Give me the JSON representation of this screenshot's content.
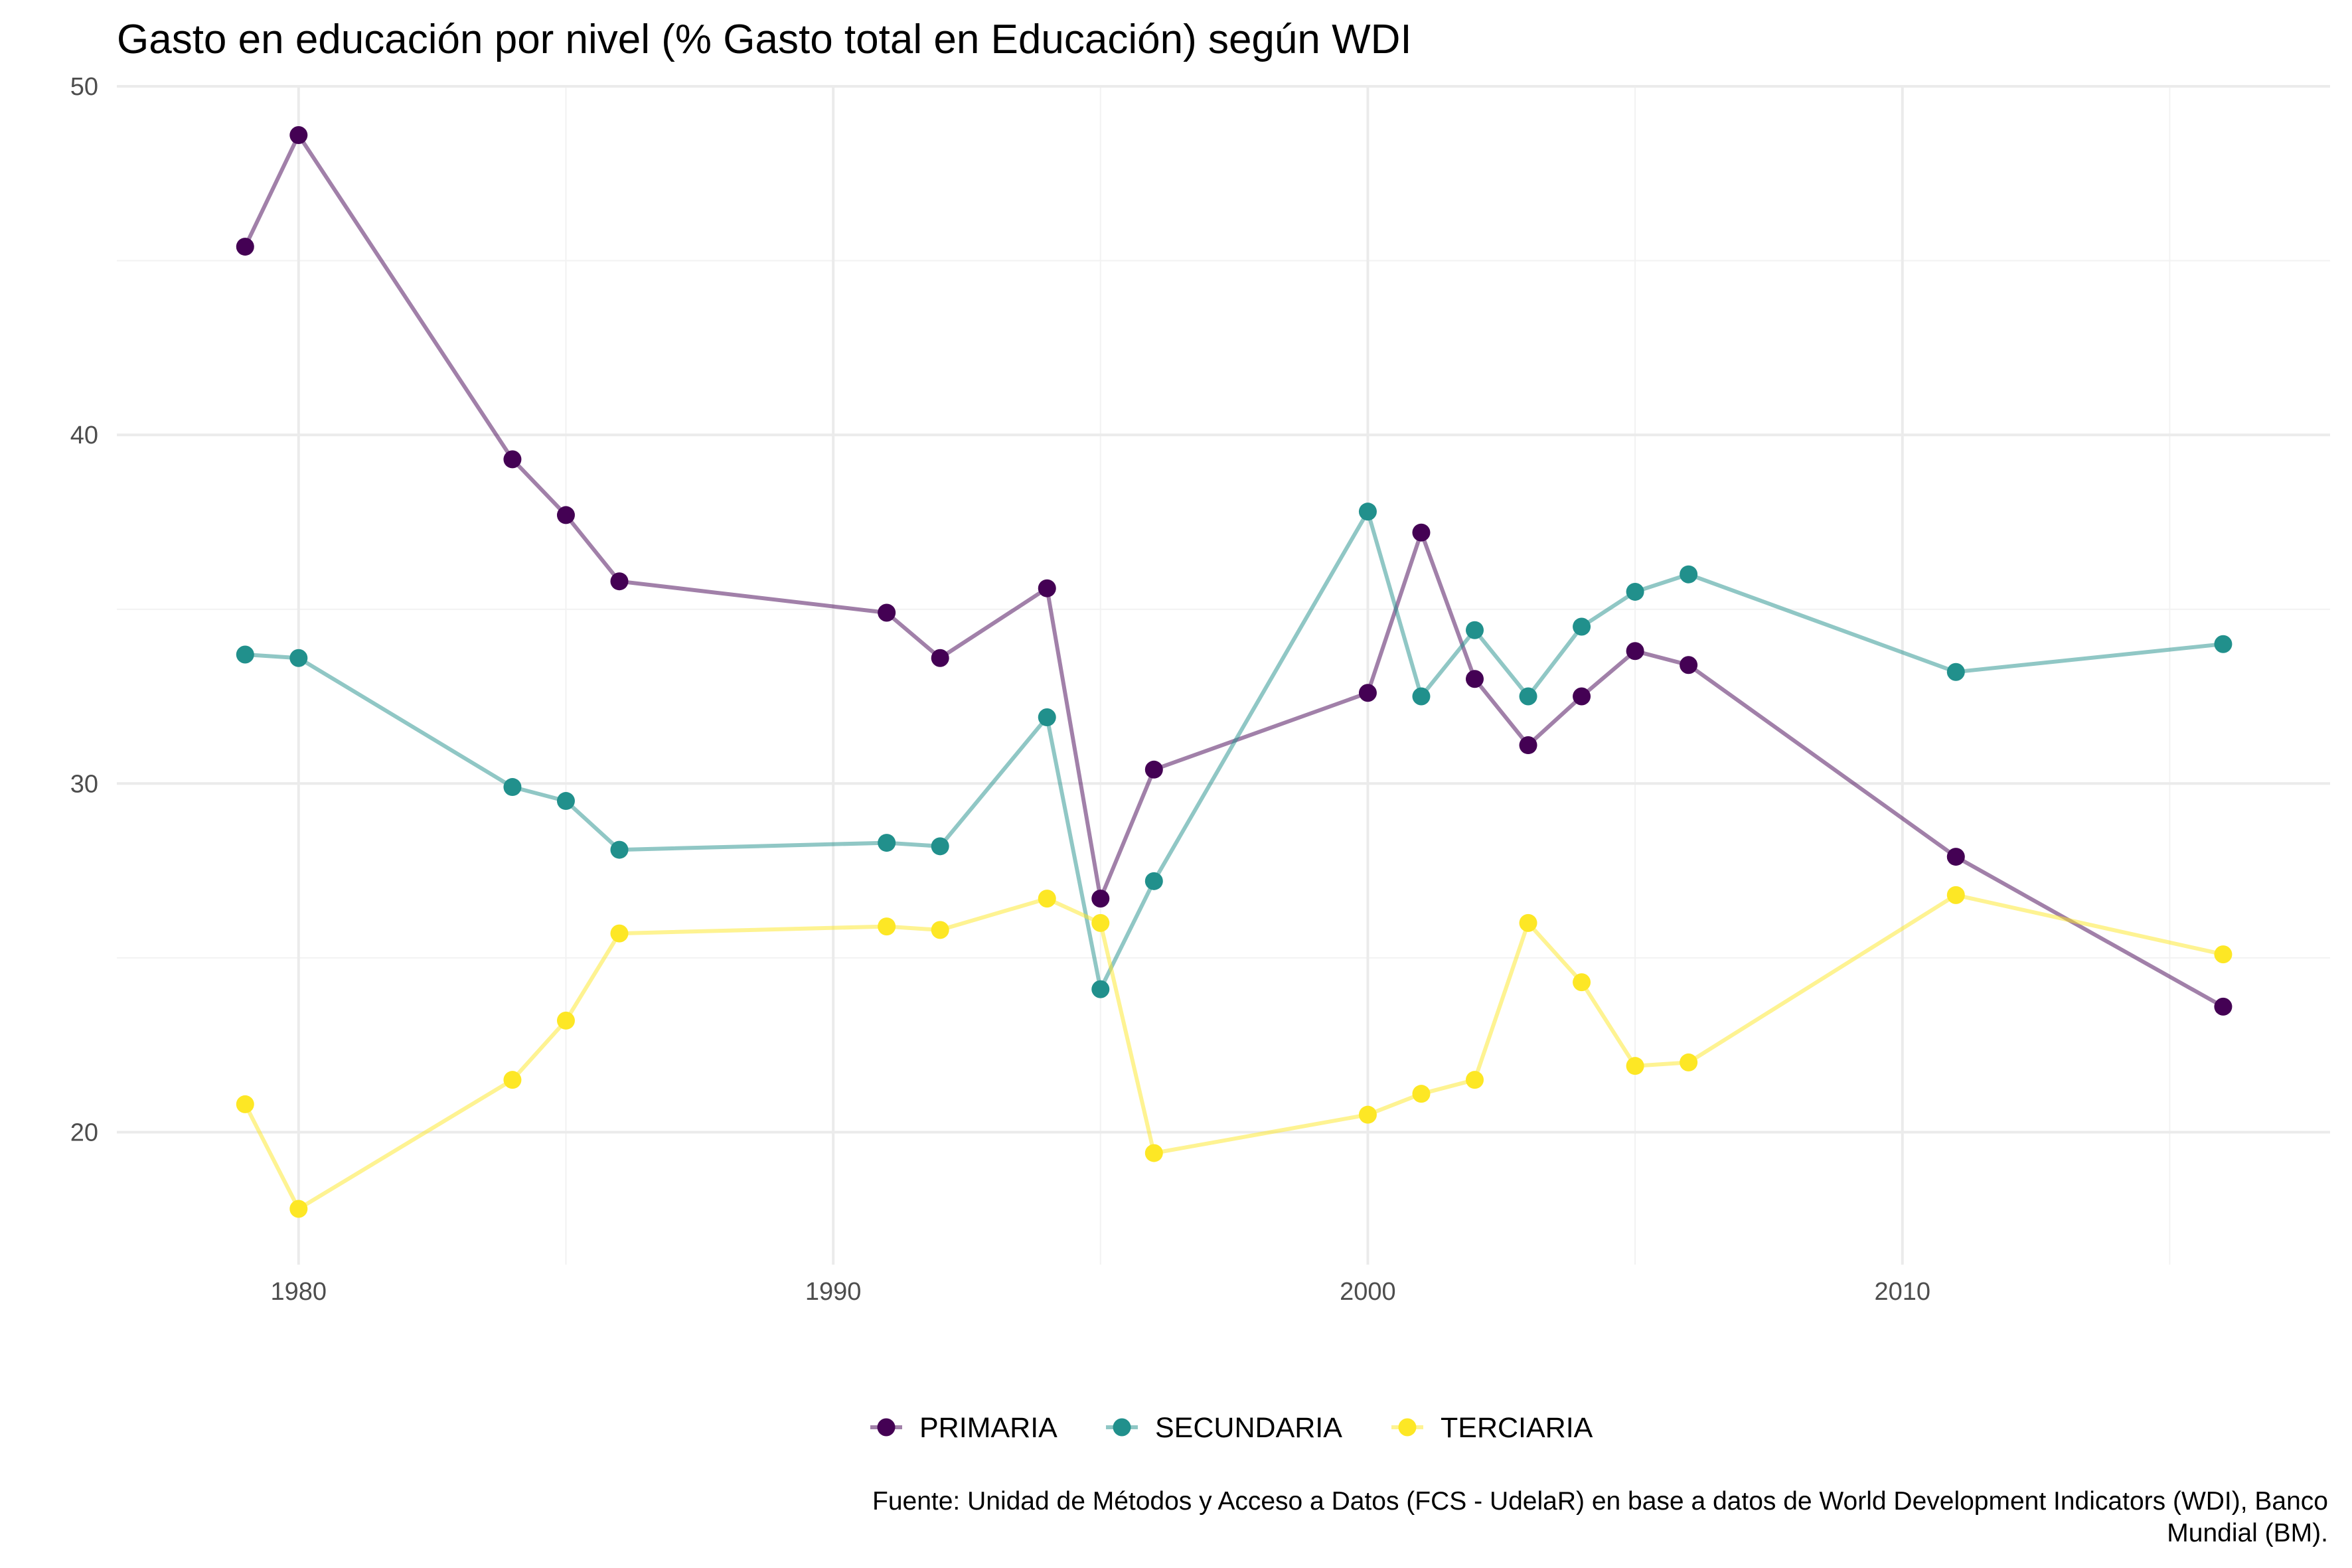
{
  "chart_data": {
    "type": "line",
    "title": "Gasto en educación por nivel (% Gasto total en Educación) según WDI",
    "xlabel": "",
    "ylabel": "",
    "xlim": [
      1976.6,
      2018.0
    ],
    "ylim": [
      16.2,
      50.0
    ],
    "x_ticks": [
      1980,
      1990,
      2000,
      2010
    ],
    "y_ticks": [
      20,
      30,
      40,
      50
    ],
    "grid": true,
    "legend_position": "bottom",
    "series": [
      {
        "name": "PRIMARIA",
        "color": "#440154",
        "x": [
          1979,
          1980,
          1984,
          1985,
          1986,
          1991,
          1992,
          1994,
          1995,
          1996,
          2000,
          2001,
          2002,
          2003,
          2004,
          2005,
          2006,
          2011,
          2016
        ],
        "y": [
          45.4,
          48.6,
          39.3,
          37.7,
          35.8,
          34.9,
          33.6,
          35.6,
          26.7,
          30.4,
          32.6,
          37.2,
          33.0,
          31.1,
          32.5,
          33.8,
          33.4,
          27.9,
          23.6
        ]
      },
      {
        "name": "SECUNDARIA",
        "color": "#21908C",
        "x": [
          1979,
          1980,
          1984,
          1985,
          1986,
          1991,
          1992,
          1994,
          1995,
          1996,
          2000,
          2001,
          2002,
          2003,
          2004,
          2005,
          2006,
          2011,
          2016
        ],
        "y": [
          33.7,
          33.6,
          29.9,
          29.5,
          28.1,
          28.3,
          28.2,
          31.9,
          24.1,
          27.2,
          37.8,
          32.5,
          34.4,
          32.5,
          34.5,
          35.5,
          36.0,
          33.2,
          34.0
        ]
      },
      {
        "name": "TERCIARIA",
        "color": "#FDE725",
        "x": [
          1979,
          1980,
          1984,
          1985,
          1986,
          1991,
          1992,
          1994,
          1995,
          1996,
          2000,
          2001,
          2002,
          2003,
          2004,
          2005,
          2006,
          2011,
          2016
        ],
        "y": [
          20.8,
          17.8,
          21.5,
          23.2,
          25.7,
          25.9,
          25.8,
          26.7,
          26.0,
          19.4,
          20.5,
          21.1,
          21.5,
          26.0,
          24.3,
          21.9,
          22.0,
          26.8,
          25.1
        ]
      }
    ],
    "caption": [
      "Fuente: Unidad de Métodos y Acceso a Datos (FCS - UdelaR) en base a datos de World Development Indicators (WDI), Banco",
      "Mundial (BM)."
    ]
  }
}
